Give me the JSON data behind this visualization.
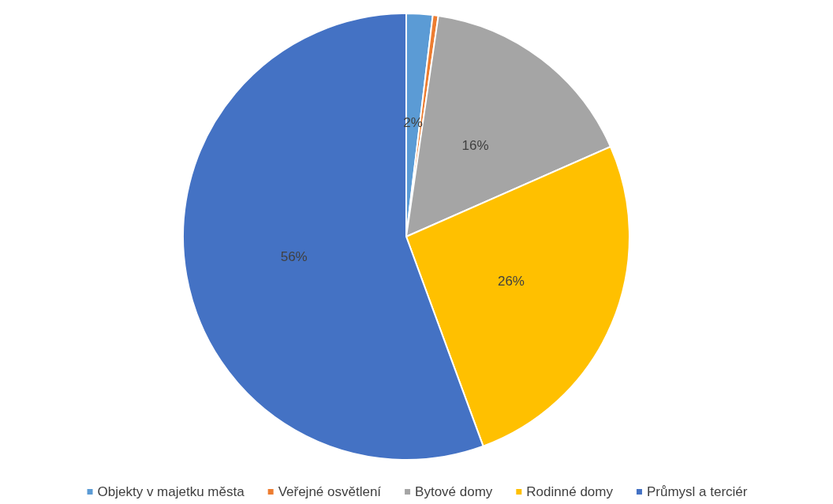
{
  "chart_data": {
    "type": "pie",
    "categories": [
      "Objekty v majetku města",
      "Veřejné osvětlení",
      "Bytové domy",
      "Rodinné domy",
      "Průmysl a terciér"
    ],
    "values": [
      1.9,
      0.4,
      16.1,
      26.0,
      55.6
    ],
    "colors": [
      "#5b9bd5",
      "#ed7d31",
      "#a5a5a5",
      "#ffc000",
      "#4472c4"
    ],
    "value_labels": [
      "2%",
      null,
      "16%",
      "26%",
      "56%"
    ],
    "legend": "bottom"
  }
}
